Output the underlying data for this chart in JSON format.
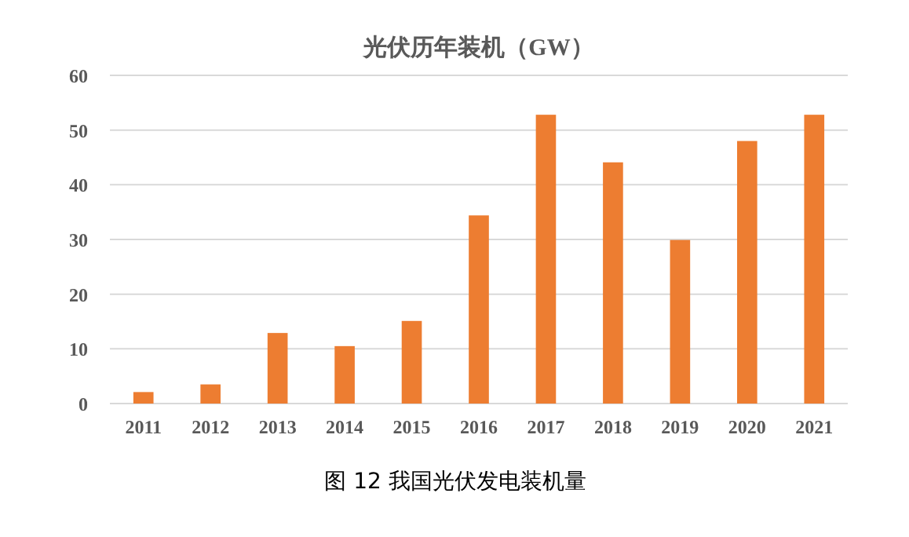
{
  "chart_data": {
    "type": "bar",
    "title": "光伏历年装机（GW）",
    "categories": [
      "2011",
      "2012",
      "2013",
      "2014",
      "2015",
      "2016",
      "2017",
      "2018",
      "2019",
      "2020",
      "2021"
    ],
    "values": [
      2.1,
      3.5,
      12.9,
      10.5,
      15.1,
      34.4,
      52.8,
      44.1,
      29.9,
      48.0,
      52.8
    ],
    "color": "#ed7d31",
    "ylim": [
      0,
      60
    ],
    "yticks": [
      0,
      10,
      20,
      30,
      40,
      50,
      60
    ],
    "grid": "y",
    "annotations": [
      "图 12  我国光伏发电装机量"
    ]
  }
}
